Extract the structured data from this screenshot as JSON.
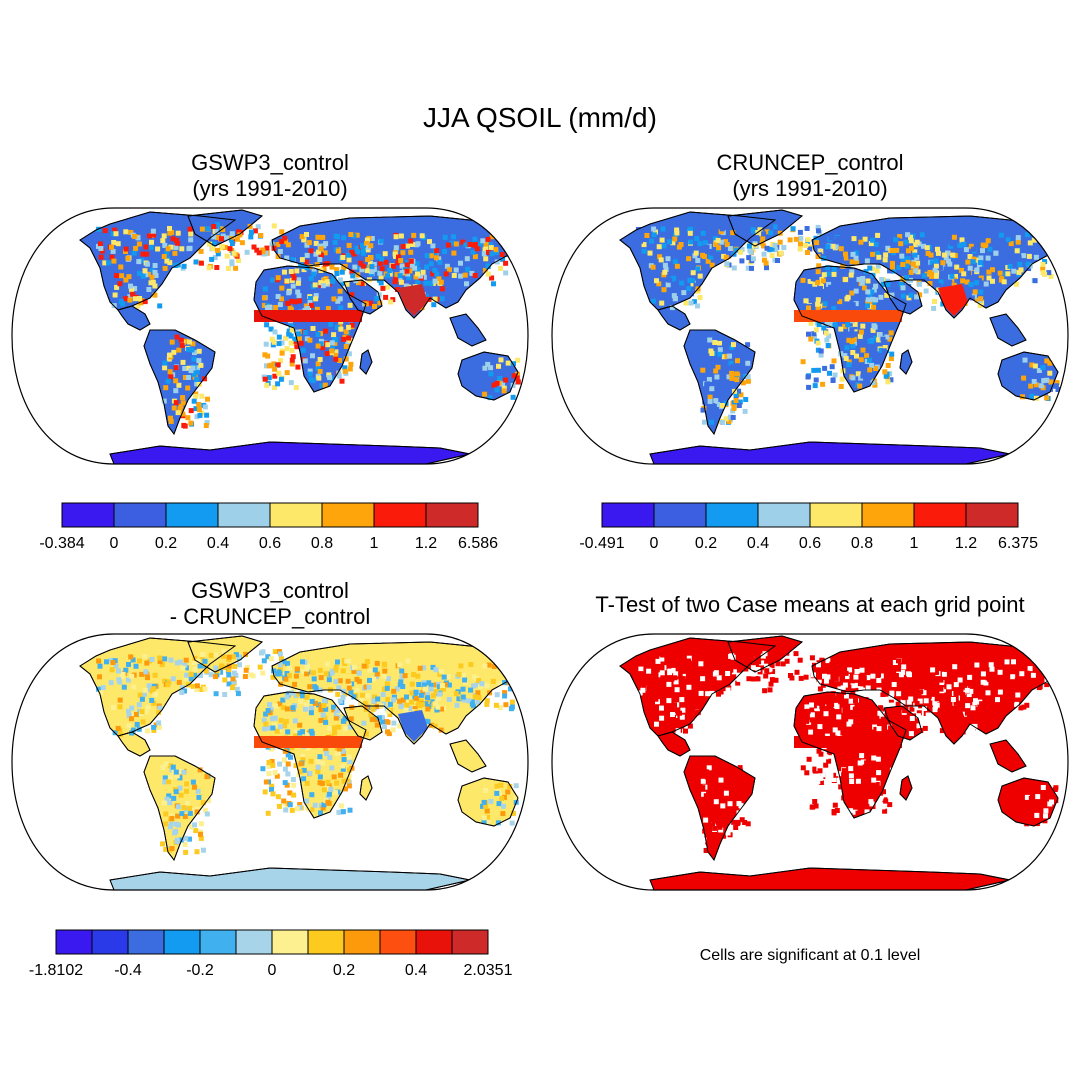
{
  "figure": {
    "title": "JJA QSOIL (mm/d)"
  },
  "panels": {
    "tl": {
      "title_line1": "GSWP3_control",
      "title_line2": "(yrs 1991-2010)"
    },
    "tr": {
      "title_line1": "CRUNCEP_control",
      "title_line2": "(yrs 1991-2010)"
    },
    "bl": {
      "title_line1": "GSWP3_control",
      "title_line2": "- CRUNCEP_control"
    },
    "br": {
      "title_line1": "T-Test of two Case means at each grid point",
      "note": "Cells are significant at 0.1 level"
    }
  },
  "colors": {
    "cb_tl": [
      "#3a18f0",
      "#3b5fe0",
      "#129bf0",
      "#9fd0ea",
      "#fde86a",
      "#fda50b",
      "#fa1b0b",
      "#cf2a2a"
    ],
    "cb_tr": [
      "#3a18f0",
      "#3b5fe0",
      "#129bf0",
      "#9fd0ea",
      "#fde86a",
      "#fda50b",
      "#fa1b0b",
      "#cf2a2a"
    ],
    "cb_bl": [
      "#3a18f0",
      "#2a3ae8",
      "#3b6de0",
      "#129bf0",
      "#40b0ee",
      "#a8d4ea",
      "#fdf090",
      "#fdca20",
      "#fd9a0b",
      "#fd5010",
      "#e8120b",
      "#cf2a2a"
    ],
    "signif": "#ee0000",
    "antarctica_tl": "#3a18f0",
    "antarctica_bl": "#a8d4ea",
    "land_tl": "#3b6de0",
    "land_bl": "#fde86a"
  },
  "chart_data": [
    {
      "type": "heatmap",
      "title": "GSWP3_control (yrs 1991-2010)",
      "variable": "JJA QSOIL",
      "units": "mm/d",
      "colorbar_ticks": [
        "-0.384",
        "0",
        "0.2",
        "0.4",
        "0.6",
        "0.8",
        "1",
        "1.2",
        "6.586"
      ],
      "data_min": -0.384,
      "data_max": 6.586
    },
    {
      "type": "heatmap",
      "title": "CRUNCEP_control (yrs 1991-2010)",
      "variable": "JJA QSOIL",
      "units": "mm/d",
      "colorbar_ticks": [
        "-0.491",
        "0",
        "0.2",
        "0.4",
        "0.6",
        "0.8",
        "1",
        "1.2",
        "6.375"
      ],
      "data_min": -0.491,
      "data_max": 6.375
    },
    {
      "type": "heatmap",
      "title": "GSWP3_control - CRUNCEP_control",
      "variable": "JJA QSOIL difference",
      "units": "mm/d",
      "colorbar_ticks": [
        "-1.8102",
        "-0.4",
        "-0.2",
        "0",
        "0.2",
        "0.4",
        "2.0351"
      ],
      "data_min": -1.8102,
      "data_max": 2.0351
    },
    {
      "type": "heatmap",
      "title": "T-Test of two Case means at each grid point",
      "significance_level": 0.1
    }
  ]
}
